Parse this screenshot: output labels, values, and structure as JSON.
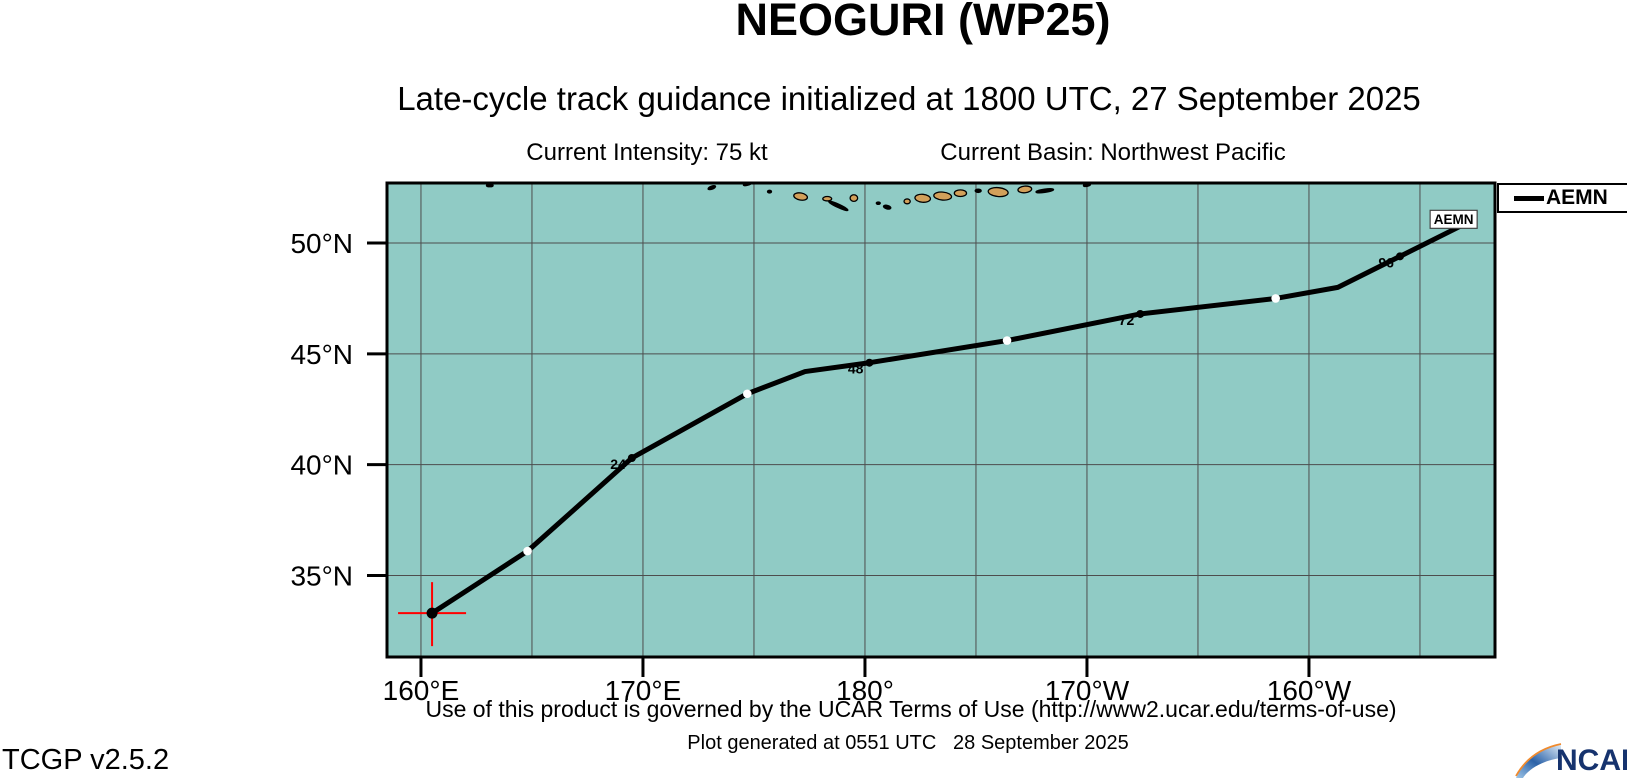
{
  "header": {
    "title": "NEOGURI (WP25)",
    "subtitle": "Late-cycle track guidance initialized at 1800 UTC, 27 September 2025",
    "current_intensity": "Current Intensity: 75 kt",
    "current_basin": "Current Basin: Northwest Pacific"
  },
  "legend": {
    "entries": [
      {
        "label": "AEMN",
        "swatch_color": "#000000"
      }
    ]
  },
  "footer": {
    "terms": "Use of this product is governed by the UCAR Terms of Use (http://www2.ucar.edu/terms-of-use)",
    "generated": "Plot generated at 0551 UTC   28 September 2025",
    "version": "TCGP v2.5.2",
    "logo_text": "NCAR"
  },
  "colors": {
    "map_background": "#90cbc5",
    "grid": "#4d4d4d",
    "land": "#d2a05a",
    "track": "#000000",
    "initial_marker": "#ff0000",
    "ncar_blue": "#16336e",
    "ncar_orange": "#f08a2d"
  },
  "chart_data": {
    "type": "line",
    "subtype": "tropical-cyclone-track-map",
    "projection": "equirectangular",
    "lon_range_deg_east": [
      158.47,
      208.38
    ],
    "lat_range": [
      31.32,
      52.71
    ],
    "grid_interval_deg": 5,
    "grid_on": true,
    "x_ticks": [
      {
        "lon_deg_east": 160,
        "label": "160°E"
      },
      {
        "lon_deg_east": 170,
        "label": "170°E"
      },
      {
        "lon_deg_east": 180,
        "label": "180°"
      },
      {
        "lon_deg_east": 190,
        "label": "170°W"
      },
      {
        "lon_deg_east": 200,
        "label": "160°W"
      }
    ],
    "y_ticks": [
      {
        "lat": 35,
        "label": "35°N"
      },
      {
        "lat": 40,
        "label": "40°N"
      },
      {
        "lat": 45,
        "label": "45°N"
      },
      {
        "lat": 50,
        "label": "50°N"
      }
    ],
    "legend_position": "top-right-outside",
    "series": [
      {
        "name": "AEMN",
        "end_label": "AEMN",
        "track": [
          {
            "hour": 0,
            "lon_deg_east": 160.5,
            "lat": 33.3,
            "marker": "start"
          },
          {
            "hour": 6,
            "lon_deg_east": 162.5,
            "lat": 34.6
          },
          {
            "hour": 12,
            "lon_deg_east": 164.8,
            "lat": 36.1,
            "marker": "white-dot"
          },
          {
            "hour": 18,
            "lon_deg_east": 167.1,
            "lat": 38.15
          },
          {
            "hour": 24,
            "lon_deg_east": 169.5,
            "lat": 40.3,
            "marker": "black-dot",
            "label": "24"
          },
          {
            "hour": 36,
            "lon_deg_east": 174.7,
            "lat": 43.2,
            "marker": "white-dot"
          },
          {
            "hour": 42,
            "lon_deg_east": 177.3,
            "lat": 44.2
          },
          {
            "hour": 48,
            "lon_deg_east": 180.2,
            "lat": 44.6,
            "marker": "black-dot",
            "label": "48"
          },
          {
            "hour": 60,
            "lon_deg_east": 186.4,
            "lat": 45.6,
            "marker": "white-dot"
          },
          {
            "hour": 72,
            "lon_deg_east": 192.4,
            "lat": 46.8,
            "marker": "black-dot",
            "label": "72"
          },
          {
            "hour": 84,
            "lon_deg_east": 198.5,
            "lat": 47.5,
            "marker": "white-dot"
          },
          {
            "hour": 90,
            "lon_deg_east": 201.3,
            "lat": 48.0
          },
          {
            "hour": 96,
            "lon_deg_east": 204.1,
            "lat": 49.4,
            "marker": "black-dot",
            "label": "96"
          },
          {
            "hour": 108,
            "lon_deg_east": 206.9,
            "lat": 50.8
          }
        ]
      }
    ],
    "initial_position": {
      "lon_deg_east": 160.5,
      "lat": 33.3,
      "marker": "red-crosshair"
    },
    "islands_format": [
      "lon_deg_east",
      "lat",
      "w_deg",
      "h_deg",
      "rot_deg",
      "style"
    ],
    "islands": [
      [
        163.1,
        52.6,
        0.3,
        0.12,
        0,
        "black"
      ],
      [
        174.7,
        52.66,
        0.36,
        0.1,
        -15,
        "black"
      ],
      [
        173.1,
        52.5,
        0.36,
        0.14,
        -20,
        "black"
      ],
      [
        175.7,
        52.32,
        0.18,
        0.12,
        0,
        "black"
      ],
      [
        177.1,
        52.1,
        0.62,
        0.32,
        10,
        "land"
      ],
      [
        178.3,
        52.0,
        0.4,
        0.2,
        0,
        "land"
      ],
      [
        178.8,
        51.68,
        0.95,
        0.15,
        25,
        "black"
      ],
      [
        179.5,
        52.03,
        0.34,
        0.3,
        0,
        "land"
      ],
      [
        180.6,
        51.8,
        0.18,
        0.1,
        0,
        "black"
      ],
      [
        181.0,
        51.62,
        0.34,
        0.16,
        15,
        "black"
      ],
      [
        181.9,
        51.88,
        0.28,
        0.22,
        0,
        "land"
      ],
      [
        182.6,
        52.02,
        0.7,
        0.36,
        5,
        "land"
      ],
      [
        183.5,
        52.12,
        0.8,
        0.36,
        5,
        "land"
      ],
      [
        184.3,
        52.25,
        0.55,
        0.3,
        0,
        "land"
      ],
      [
        185.1,
        52.36,
        0.27,
        0.15,
        0,
        "black"
      ],
      [
        186.0,
        52.3,
        0.9,
        0.4,
        5,
        "land"
      ],
      [
        187.2,
        52.42,
        0.62,
        0.3,
        -5,
        "land"
      ],
      [
        188.1,
        52.36,
        0.8,
        0.15,
        -8,
        "black"
      ],
      [
        190.0,
        52.62,
        0.32,
        0.12,
        -10,
        "black"
      ]
    ]
  }
}
